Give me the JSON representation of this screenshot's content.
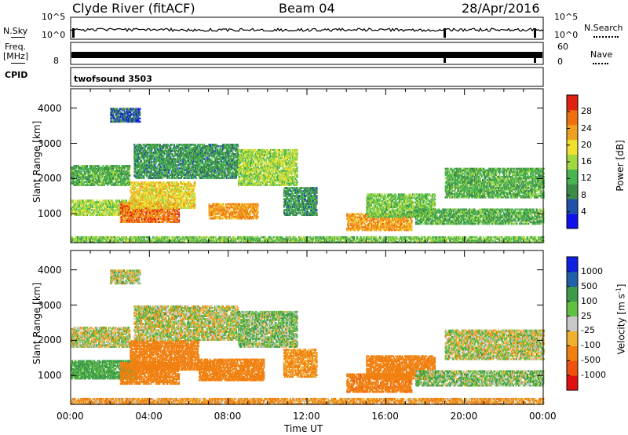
{
  "header": {
    "station": "Clyde River (fitACF)",
    "beam": "Beam 04",
    "date": "28/Apr/2016"
  },
  "top_panels": {
    "nsky_label": "N.Sky",
    "nsky_ticks": [
      "10^5",
      "10^0"
    ],
    "nsearch_label": "N.Search",
    "nsearch_ticks": [
      "10^5",
      "10^0"
    ],
    "freq_label_1": "Freq.",
    "freq_label_2": "[MHz]",
    "freq_tick": "8",
    "nave_label": "Nave",
    "nave_ticks": [
      "60",
      "0"
    ],
    "cpid_label": "CPID",
    "cpid_value": "twofsound 3503"
  },
  "colors": {
    "power": [
      "#1010ee",
      "#2050a8",
      "#3c8a48",
      "#48b450",
      "#a0d840",
      "#f0e030",
      "#f0a020",
      "#f07010",
      "#e02010"
    ],
    "velocity": [
      "#e01010",
      "#ee5010",
      "#f08010",
      "#f0b030",
      "#c8c8c8",
      "#60c040",
      "#3c9a48",
      "#2060a8",
      "#1020e0"
    ]
  },
  "chart_data": [
    {
      "type": "heatmap",
      "quantity": "Power",
      "ylabel": "Slant Range [km]",
      "yticks": [
        1000,
        2000,
        3000,
        4000
      ],
      "ylim": [
        180,
        4550
      ],
      "xlim": [
        0,
        24
      ],
      "colorbar_label": "Power [dB]",
      "colorbar_ticks": [
        4,
        8,
        12,
        16,
        20,
        24,
        28
      ],
      "colorbar_range": [
        0,
        32
      ],
      "bands": [
        {
          "t0": 0.0,
          "t1": 3.0,
          "r0": 1800,
          "r1": 2350,
          "value": 12
        },
        {
          "t0": 0.0,
          "t1": 3.3,
          "r0": 950,
          "r1": 1400,
          "value": 16
        },
        {
          "t0": 2.5,
          "t1": 5.5,
          "r0": 750,
          "r1": 1300,
          "value": 26
        },
        {
          "t0": 3.0,
          "t1": 6.3,
          "r0": 1150,
          "r1": 1900,
          "value": 20
        },
        {
          "t0": 3.2,
          "t1": 8.5,
          "r0": 2000,
          "r1": 2950,
          "value": 10
        },
        {
          "t0": 7.0,
          "t1": 9.5,
          "r0": 850,
          "r1": 1300,
          "value": 24
        },
        {
          "t0": 8.5,
          "t1": 11.5,
          "r0": 1800,
          "r1": 2800,
          "value": 16
        },
        {
          "t0": 10.8,
          "t1": 12.5,
          "r0": 950,
          "r1": 1750,
          "value": 10
        },
        {
          "t0": 14.0,
          "t1": 17.3,
          "r0": 520,
          "r1": 1000,
          "value": 24
        },
        {
          "t0": 15.0,
          "t1": 18.5,
          "r0": 900,
          "r1": 1550,
          "value": 14
        },
        {
          "t0": 17.5,
          "t1": 24.0,
          "r0": 700,
          "r1": 1150,
          "value": 12
        },
        {
          "t0": 19.0,
          "t1": 24.0,
          "r0": 1450,
          "r1": 2300,
          "value": 12
        },
        {
          "t0": 2.0,
          "t1": 3.5,
          "r0": 3600,
          "r1": 4000,
          "value": 6
        },
        {
          "t0": 0.0,
          "t1": 24.0,
          "r0": 180,
          "r1": 330,
          "value": 14
        }
      ],
      "xlabel": ""
    },
    {
      "type": "heatmap",
      "quantity": "Velocity",
      "ylabel": "Slant Range [km]",
      "yticks": [
        1000,
        2000,
        3000,
        4000
      ],
      "ylim": [
        180,
        4550
      ],
      "xlim": [
        0,
        24
      ],
      "xticks": [
        "00:00",
        "04:00",
        "08:00",
        "12:00",
        "16:00",
        "20:00",
        "00:00"
      ],
      "xlabel": "Time UT",
      "colorbar_label": "Velocity [m s^-1]",
      "colorbar_ticks": [
        "1000",
        "500",
        "100",
        "25",
        "-25",
        "-100",
        "-500",
        "-1000"
      ],
      "bands": [
        {
          "t0": 0.0,
          "t1": 3.0,
          "r0": 1800,
          "r1": 2350,
          "value": 0
        },
        {
          "t0": 0.0,
          "t1": 3.3,
          "r0": 900,
          "r1": 1400,
          "value": 150
        },
        {
          "t0": 2.5,
          "t1": 5.5,
          "r0": 750,
          "r1": 1350,
          "value": -300
        },
        {
          "t0": 3.0,
          "t1": 6.5,
          "r0": 1150,
          "r1": 2000,
          "value": -250
        },
        {
          "t0": 3.2,
          "t1": 8.5,
          "r0": 2000,
          "r1": 2950,
          "value": 0
        },
        {
          "t0": 6.5,
          "t1": 9.8,
          "r0": 850,
          "r1": 1450,
          "value": -300
        },
        {
          "t0": 8.5,
          "t1": 11.5,
          "r0": 1800,
          "r1": 2800,
          "value": 60
        },
        {
          "t0": 10.8,
          "t1": 12.5,
          "r0": 950,
          "r1": 1750,
          "value": -150
        },
        {
          "t0": 14.0,
          "t1": 17.3,
          "r0": 520,
          "r1": 1050,
          "value": -400
        },
        {
          "t0": 15.0,
          "t1": 18.5,
          "r0": 900,
          "r1": 1550,
          "value": -300
        },
        {
          "t0": 17.5,
          "t1": 24.0,
          "r0": 700,
          "r1": 1150,
          "value": 60
        },
        {
          "t0": 19.0,
          "t1": 24.0,
          "r0": 1450,
          "r1": 2300,
          "value": 0
        },
        {
          "t0": 2.0,
          "t1": 3.5,
          "r0": 3600,
          "r1": 4000,
          "value": 0
        },
        {
          "t0": 0.0,
          "t1": 24.0,
          "r0": 180,
          "r1": 330,
          "value": -120
        }
      ]
    }
  ]
}
